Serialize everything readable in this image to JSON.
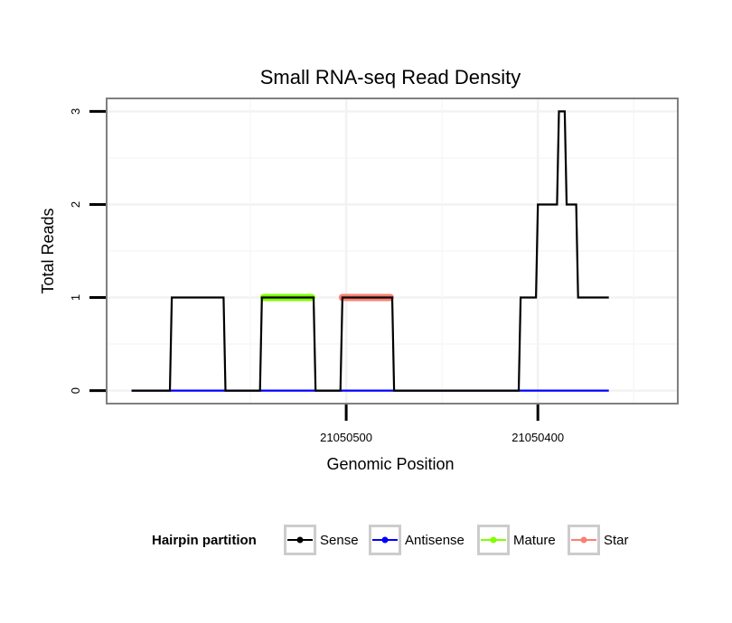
{
  "chart_data": {
    "type": "line",
    "title": "Small RNA-seq Read Density",
    "xlabel": "Genomic Position",
    "ylabel": "Total Reads",
    "xlim": [
      21050625,
      21050327
    ],
    "ylim": [
      -0.14,
      3.14
    ],
    "x_reversed": true,
    "x_ticks": [
      21050500,
      21050400
    ],
    "x_tick_labels": [
      "21050500",
      "21050400"
    ],
    "y_ticks": [
      0,
      1,
      2,
      3
    ],
    "y_tick_labels": [
      "0",
      "1",
      "2",
      "3"
    ],
    "grid": true,
    "legend_position": "bottom",
    "legend_title": "Hairpin partition",
    "legend": [
      {
        "name": "Sense",
        "color": "#000000"
      },
      {
        "name": "Antisense",
        "color": "#0000ff"
      },
      {
        "name": "Mature",
        "color": "#7fff00"
      },
      {
        "name": "Star",
        "color": "#fa8072"
      }
    ],
    "series": [
      {
        "name": "Sense",
        "color": "#000000",
        "x": [
          21050612,
          21050592,
          21050591,
          21050564,
          21050563,
          21050545,
          21050544,
          21050517,
          21050516,
          21050503,
          21050502,
          21050476,
          21050475,
          21050410,
          21050409,
          21050401,
          21050400,
          21050390,
          21050389,
          21050386,
          21050385,
          21050380,
          21050379,
          21050373,
          21050372,
          21050363
        ],
        "y": [
          0,
          0,
          1,
          1,
          0,
          0,
          1,
          1,
          0,
          0,
          1,
          1,
          0,
          0,
          1,
          1,
          2,
          2,
          3,
          3,
          2,
          2,
          1,
          1,
          1,
          1
        ]
      },
      {
        "name": "Antisense",
        "color": "#0000ff",
        "x": [
          21050612,
          21050363
        ],
        "y": [
          0,
          0
        ]
      },
      {
        "name": "Mature",
        "color": "#7fff00",
        "x": [
          21050543,
          21050518
        ],
        "y": [
          1,
          1
        ]
      },
      {
        "name": "Star",
        "color": "#fa8072",
        "x": [
          21050502,
          21050477
        ],
        "y": [
          1,
          1
        ]
      }
    ]
  }
}
